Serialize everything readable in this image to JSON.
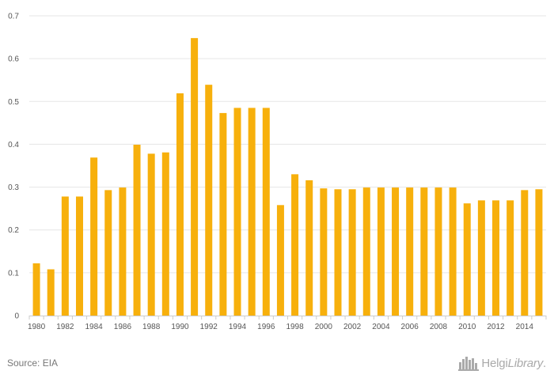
{
  "chart_data": {
    "type": "bar",
    "categories": [
      "1980",
      "1981",
      "1982",
      "1983",
      "1984",
      "1985",
      "1986",
      "1987",
      "1988",
      "1989",
      "1990",
      "1991",
      "1992",
      "1993",
      "1994",
      "1995",
      "1996",
      "1997",
      "1998",
      "1999",
      "2000",
      "2001",
      "2002",
      "2003",
      "2004",
      "2005",
      "2006",
      "2007",
      "2008",
      "2009",
      "2010",
      "2011",
      "2012",
      "2013",
      "2014",
      "2015"
    ],
    "values": [
      0.122,
      0.108,
      0.278,
      0.278,
      0.369,
      0.293,
      0.299,
      0.399,
      0.378,
      0.381,
      0.519,
      0.648,
      0.539,
      0.473,
      0.485,
      0.485,
      0.485,
      0.258,
      0.33,
      0.316,
      0.297,
      0.295,
      0.295,
      0.299,
      0.299,
      0.299,
      0.299,
      0.299,
      0.299,
      0.299,
      0.262,
      0.269,
      0.269,
      0.269,
      0.293,
      0.295
    ],
    "x_tick_labels": [
      "1980",
      "1982",
      "1984",
      "1986",
      "1988",
      "1990",
      "1992",
      "1994",
      "1996",
      "1998",
      "2000",
      "2002",
      "2004",
      "2006",
      "2008",
      "2010",
      "2012",
      "2014"
    ],
    "y_ticks": [
      0,
      0.1,
      0.2,
      0.3,
      0.4,
      0.5,
      0.6,
      0.7
    ],
    "ylim": [
      0,
      0.7
    ],
    "grid": true,
    "bar_color": "#f7b00c",
    "title": "",
    "xlabel": "",
    "ylabel": ""
  },
  "footer": {
    "source": "Source: EIA",
    "logo_name": "Helgi",
    "logo_suffix": "Library",
    "logo_dot": "."
  },
  "colors": {
    "grid": "#e6e6e6",
    "axis": "#cccccc",
    "label": "#555555",
    "logo": "#aaaaaa"
  }
}
